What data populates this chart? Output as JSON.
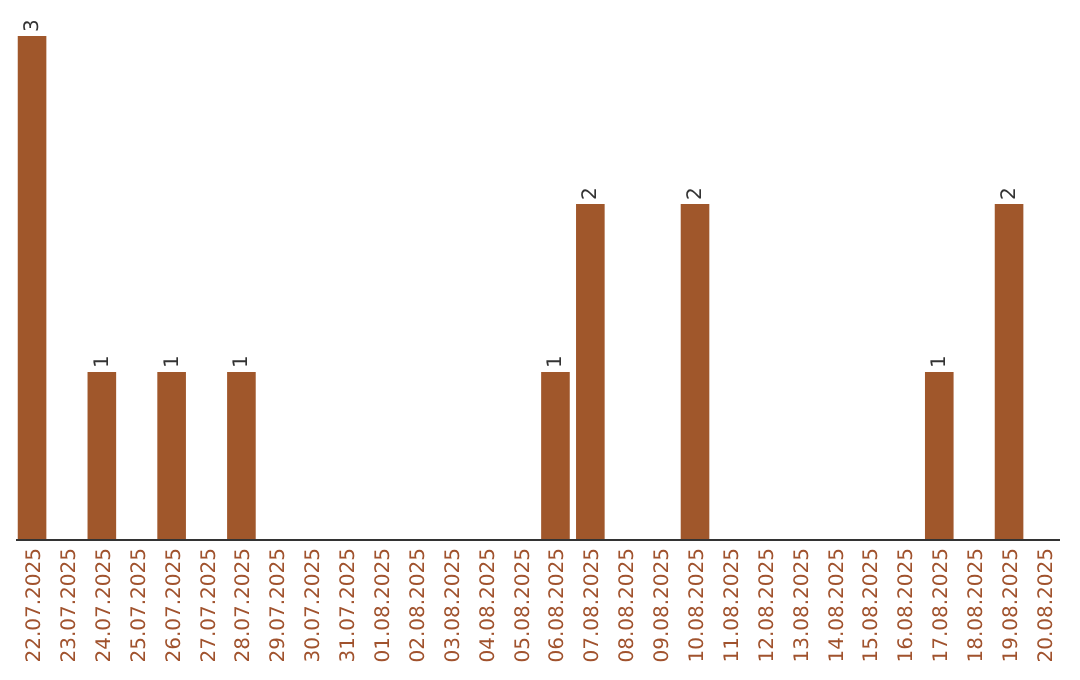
{
  "chart_data": {
    "type": "bar",
    "categories": [
      "22.07.2025",
      "23.07.2025",
      "24.07.2025",
      "25.07.2025",
      "26.07.2025",
      "27.07.2025",
      "28.07.2025",
      "29.07.2025",
      "30.07.2025",
      "31.07.2025",
      "01.08.2025",
      "02.08.2025",
      "03.08.2025",
      "04.08.2025",
      "05.08.2025",
      "06.08.2025",
      "07.08.2025",
      "08.08.2025",
      "09.08.2025",
      "10.08.2025",
      "11.08.2025",
      "12.08.2025",
      "13.08.2025",
      "14.08.2025",
      "15.08.2025",
      "16.08.2025",
      "17.08.2025",
      "18.08.2025",
      "19.08.2025",
      "20.08.2025"
    ],
    "values": [
      3,
      0,
      1,
      0,
      1,
      0,
      1,
      0,
      0,
      0,
      0,
      0,
      0,
      0,
      0,
      1,
      2,
      0,
      0,
      2,
      0,
      0,
      0,
      0,
      0,
      0,
      1,
      0,
      2,
      0
    ],
    "value_labels": [
      "3",
      null,
      "1",
      null,
      "1",
      null,
      "1",
      null,
      null,
      null,
      null,
      null,
      null,
      null,
      null,
      "1",
      "2",
      null,
      null,
      "2",
      null,
      null,
      null,
      null,
      null,
      null,
      "1",
      null,
      "2",
      null
    ],
    "color": "#a0572b"
  }
}
